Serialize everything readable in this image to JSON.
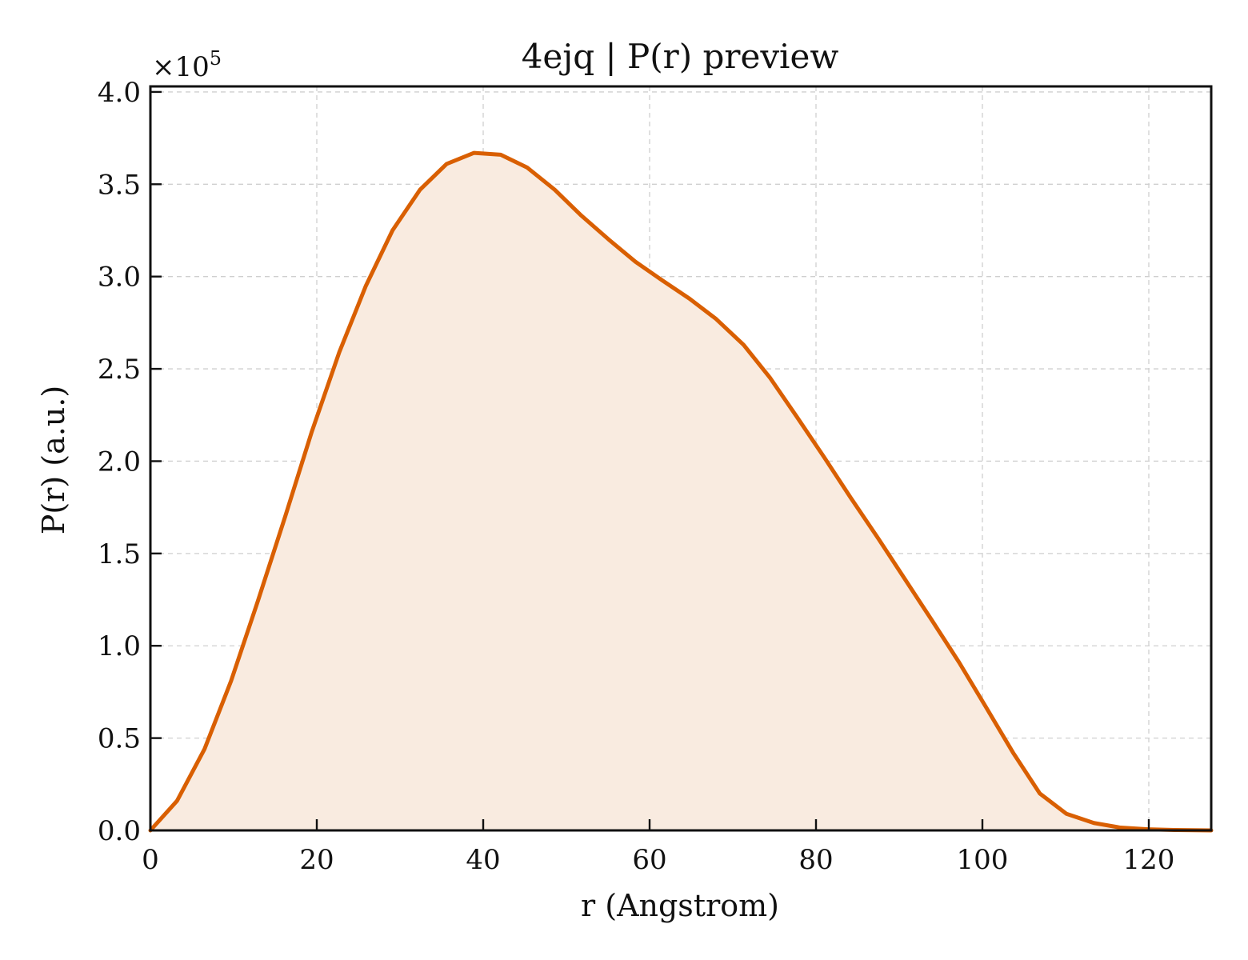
{
  "chart_data": {
    "type": "area",
    "title": "4ejq | P(r) preview",
    "xlabel": "r (Angstrom)",
    "ylabel": "P(r) (a.u.)",
    "y_offset_label": "×10",
    "y_offset_exponent": "5",
    "xlim": [
      0,
      127.5
    ],
    "ylim": [
      0,
      4.03
    ],
    "x_ticks": [
      0,
      20,
      40,
      60,
      80,
      100,
      120
    ],
    "x_tick_labels": [
      "0",
      "20",
      "40",
      "60",
      "80",
      "100",
      "120"
    ],
    "y_ticks": [
      0,
      0.5,
      1.0,
      1.5,
      2.0,
      2.5,
      3.0,
      3.5,
      4.0
    ],
    "y_tick_labels": [
      "0.0",
      "0.5",
      "1.0",
      "1.5",
      "2.0",
      "2.5",
      "3.0",
      "3.5",
      "4.0"
    ],
    "grid": true,
    "colors": {
      "line": "#d95f02",
      "fill": "#f9ebe0"
    },
    "series": [
      {
        "x": [
          0,
          3.2,
          6.5,
          9.7,
          12.9,
          16.2,
          19.4,
          22.7,
          25.9,
          29.1,
          32.4,
          35.6,
          38.9,
          42.1,
          45.3,
          48.6,
          51.8,
          55.1,
          58.3,
          61.5,
          64.8,
          68.0,
          71.3,
          74.5,
          77.7,
          81.0,
          84.2,
          87.5,
          90.7,
          93.9,
          97.2,
          100.4,
          103.7,
          106.9,
          110.1,
          113.4,
          116.6,
          119.9,
          123.1,
          127.5
        ],
        "y": [
          0.0,
          0.16,
          0.44,
          0.81,
          1.24,
          1.7,
          2.16,
          2.59,
          2.95,
          3.25,
          3.47,
          3.61,
          3.67,
          3.66,
          3.59,
          3.47,
          3.33,
          3.2,
          3.08,
          2.98,
          2.88,
          2.77,
          2.63,
          2.45,
          2.24,
          2.02,
          1.8,
          1.58,
          1.36,
          1.14,
          0.91,
          0.67,
          0.42,
          0.2,
          0.09,
          0.04,
          0.015,
          0.006,
          0.002,
          0.0
        ]
      }
    ]
  }
}
